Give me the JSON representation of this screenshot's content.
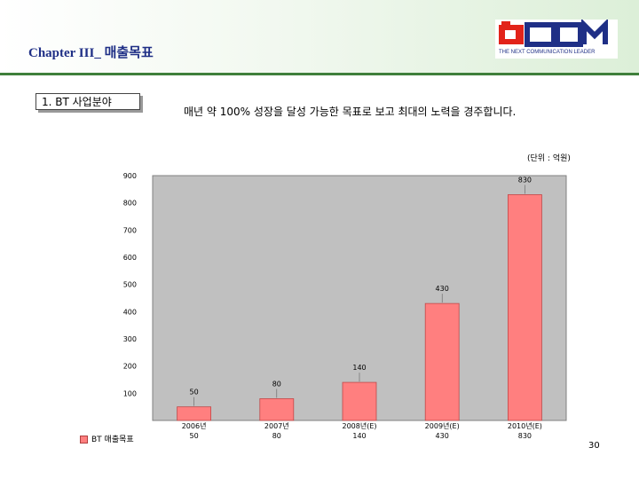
{
  "header": {
    "title": "Chapter III_ 매출목표"
  },
  "logo": {
    "brand": "JCOM",
    "tagline": "THE NEXT COMMUNICATION LEADER",
    "accent_red": "#e2231a",
    "accent_navy": "#1f2f86"
  },
  "section_label": "1. BT 사업분야",
  "description": "매년 약 100% 성장을 달성 가능한 목표로 보고 최대의 노력을 경주합니다.",
  "unit_label": "(단위 : 억원)",
  "page_number": "30",
  "chart_data": {
    "type": "bar",
    "categories": [
      "2006년",
      "2007년",
      "2008년(E)",
      "2009년(E)",
      "2010년(E)"
    ],
    "series": [
      {
        "name": "BT 매출목표",
        "values": [
          50,
          80,
          140,
          430,
          830
        ],
        "color": "#ff7f7f"
      }
    ],
    "ylim": [
      0,
      900
    ],
    "yticks": [
      100,
      200,
      300,
      400,
      500,
      600,
      700,
      800,
      900
    ],
    "grid": false,
    "plot_background": "#c0c0c0",
    "legend": "bottom-left",
    "data_table": true
  }
}
